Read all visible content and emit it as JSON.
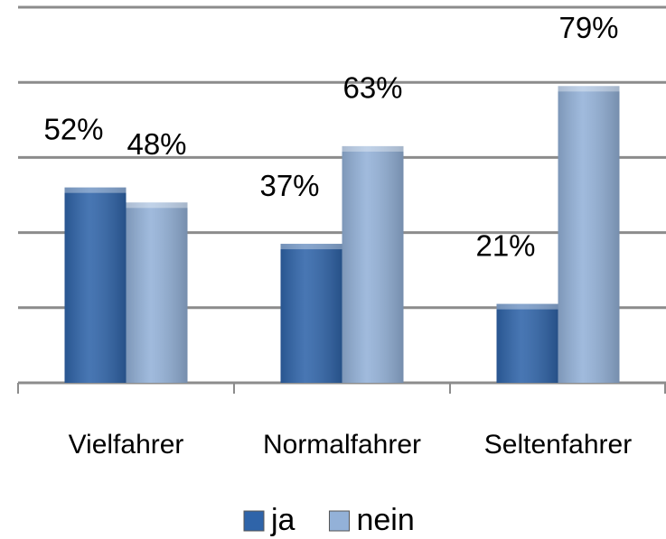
{
  "chart_data": {
    "type": "bar",
    "categories": [
      "Vielfahrer",
      "Normalfahrer",
      "Seltenfahrer"
    ],
    "series": [
      {
        "name": "ja",
        "color": "#2f64a9",
        "values": [
          52,
          37,
          21
        ],
        "value_labels": [
          "52%",
          "37%",
          "21%"
        ]
      },
      {
        "name": "nein",
        "color": "#93b1d8",
        "values": [
          48,
          63,
          79
        ],
        "value_labels": [
          "48%",
          "63%",
          "79%"
        ]
      }
    ],
    "ylim": [
      0,
      100
    ],
    "yticks": [
      0,
      20,
      40,
      60,
      80,
      100
    ],
    "grid": true,
    "legend": "bottom"
  }
}
